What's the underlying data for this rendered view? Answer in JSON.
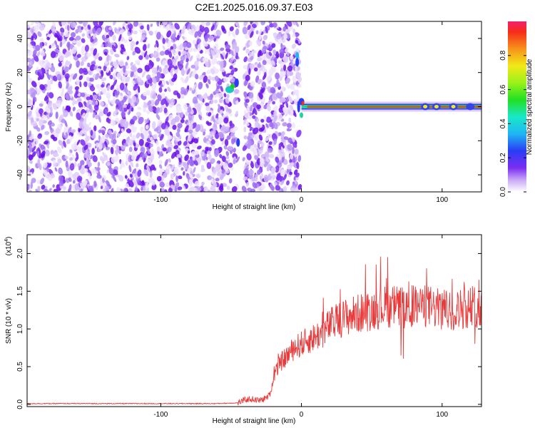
{
  "title": "C2E1.2025.016.09.37.E03",
  "colors": {
    "spectrum_scatter": "#7a2cf0",
    "snr_line": "#e83a3a",
    "axis": "#000000"
  },
  "chart_data": [
    {
      "type": "heatmap",
      "xlabel": "Height of straight line (km)",
      "ylabel": "Frequency (Hz)",
      "xlim": [
        -195,
        128
      ],
      "ylim": [
        -50,
        50
      ],
      "x_ticks": [
        -100,
        0,
        100
      ],
      "y_ticks": [
        -40,
        -20,
        0,
        20,
        40
      ],
      "colorbar": {
        "label": "Normalized spectral amplitude",
        "range": [
          0.0,
          1.0
        ],
        "ticks": [
          0.0,
          0.2,
          0.4,
          0.6,
          0.8
        ],
        "tick_labels": [
          "0.0",
          "0.2",
          "0.4",
          "0.6",
          "0.8"
        ]
      },
      "features": {
        "noise_region_km": [
          -195,
          -1
        ],
        "gap_km": [
          -45,
          -41
        ],
        "carrier_frequency_hz": 0,
        "carrier_start_km": 0,
        "carrier_amplitude": 0.95
      }
    },
    {
      "type": "line",
      "xlabel": "Height of straight line (km)",
      "ylabel": "SNR (10 * v/v)",
      "y_multiplier": "(x10",
      "y_multiplier_exp": "4",
      "xlim": [
        -195,
        128
      ],
      "ylim": [
        -0.03,
        2.25
      ],
      "x_ticks": [
        -100,
        0,
        100
      ],
      "y_ticks": [
        0.0,
        0.5,
        1.0,
        1.5,
        2.0
      ],
      "y_tick_labels": [
        "0.0",
        "0.5",
        "1.0",
        "1.5",
        "2.0"
      ],
      "series": [
        {
          "x": [
            -195,
            -150,
            -100,
            -60,
            -45,
            -40,
            -35,
            -30,
            -26,
            -24,
            -22,
            -20,
            -18,
            -15,
            -10,
            -5,
            0,
            5,
            10,
            15,
            20,
            30,
            40,
            50,
            60,
            70,
            80,
            90,
            100,
            110,
            120,
            128
          ],
          "y": [
            0.01,
            0.01,
            0.01,
            0.01,
            0.02,
            0.06,
            0.07,
            0.05,
            0.08,
            0.1,
            0.15,
            0.35,
            0.45,
            0.55,
            0.65,
            0.75,
            0.8,
            0.85,
            0.9,
            0.95,
            1.05,
            1.15,
            1.2,
            1.25,
            1.3,
            1.3,
            1.3,
            1.3,
            1.25,
            1.25,
            1.3,
            1.3
          ]
        }
      ]
    }
  ]
}
